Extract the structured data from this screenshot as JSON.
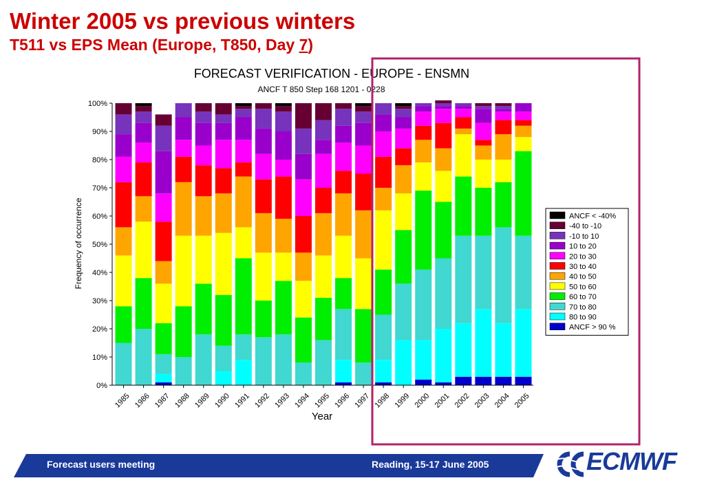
{
  "slide": {
    "title": "Winter 2005 vs previous winters",
    "subtitle_pre": "T511 vs EPS Mean (Europe, T850, Day ",
    "subtitle_day": "7",
    "subtitle_post": ")",
    "footer_left": "Forecast users meeting",
    "footer_right": "Reading, 15-17 June 2005",
    "logo_text": "ECMWF",
    "footer_color": "#1a3a9a",
    "highlight_color": "#b0226a"
  },
  "chart_data": {
    "type": "bar",
    "stacked": true,
    "title": "FORECAST VERIFICATION - EUROPE - ENSMN",
    "subtitle": "ANCF T 850 Step 168 1201 - 0228",
    "xlabel": "Year",
    "ylabel": "Frequency of occurrence",
    "ylim": [
      0,
      100
    ],
    "y_ticks": [
      "0%",
      "10%",
      "20%",
      "30%",
      "40%",
      "50%",
      "60%",
      "70%",
      "80%",
      "90%",
      "100%"
    ],
    "grid": false,
    "legend_position": "right",
    "highlighted_years": [
      "1998",
      "1999",
      "2000",
      "2001",
      "2002",
      "2003",
      "2004",
      "2005"
    ],
    "categories": [
      "1985",
      "1986",
      "1987",
      "1988",
      "1989",
      "1990",
      "1991",
      "1992",
      "1993",
      "1994",
      "1995",
      "1996",
      "1997",
      "1998",
      "1999",
      "2000",
      "2001",
      "2002",
      "2003",
      "2004",
      "2005"
    ],
    "series": [
      {
        "name": "ANCF > 90 %",
        "color": "#0000cc",
        "values": [
          0,
          0,
          1,
          0,
          0,
          0,
          0,
          0,
          0,
          0,
          0,
          1,
          0,
          1,
          0,
          2,
          1,
          3,
          3,
          3,
          3
        ]
      },
      {
        "name": "80 to 90",
        "color": "#00ffff",
        "values": [
          0,
          0,
          3,
          0,
          0,
          5,
          9,
          0,
          0,
          0,
          0,
          8,
          0,
          8,
          16,
          14,
          19,
          19,
          24,
          19,
          24
        ]
      },
      {
        "name": "70 to 80",
        "color": "#40d8d0",
        "values": [
          15,
          20,
          7,
          10,
          18,
          9,
          9,
          17,
          18,
          8,
          16,
          18,
          8,
          16,
          20,
          25,
          25,
          31,
          26,
          34,
          26
        ]
      },
      {
        "name": "60 to 70",
        "color": "#00ee00",
        "values": [
          13,
          18,
          11,
          18,
          18,
          18,
          27,
          13,
          19,
          16,
          15,
          11,
          19,
          16,
          19,
          28,
          20,
          21,
          17,
          16,
          30
        ]
      },
      {
        "name": "50 to 60",
        "color": "#ffff00",
        "values": [
          18,
          20,
          14,
          25,
          17,
          22,
          11,
          17,
          10,
          13,
          15,
          15,
          18,
          21,
          13,
          10,
          11,
          15,
          10,
          8,
          5
        ]
      },
      {
        "name": "40 to 50",
        "color": "#ffa500",
        "values": [
          10,
          9,
          8,
          19,
          14,
          14,
          18,
          14,
          12,
          10,
          15,
          15,
          17,
          8,
          10,
          8,
          8,
          2,
          5,
          9,
          4
        ]
      },
      {
        "name": "30 to 40",
        "color": "#ff0000",
        "values": [
          16,
          12,
          14,
          9,
          11,
          9,
          5,
          12,
          15,
          13,
          9,
          8,
          13,
          11,
          6,
          5,
          9,
          4,
          2,
          5,
          2
        ]
      },
      {
        "name": "20 to 30",
        "color": "#ff00ff",
        "values": [
          9,
          7,
          10,
          6,
          7,
          10,
          8,
          9,
          6,
          13,
          12,
          10,
          10,
          9,
          7,
          5,
          5,
          3,
          6,
          3,
          3
        ]
      },
      {
        "name": "10 to 20",
        "color": "#9900cc",
        "values": [
          8,
          7,
          15,
          8,
          8,
          6,
          8,
          9,
          10,
          9,
          5,
          6,
          8,
          6,
          4,
          2,
          1,
          1,
          5,
          1,
          3
        ]
      },
      {
        "name": "-10 to 10",
        "color": "#7733bb",
        "values": [
          7,
          4,
          9,
          5,
          4,
          3,
          3,
          7,
          7,
          9,
          7,
          6,
          4,
          4,
          3,
          1,
          1,
          1,
          1,
          1,
          0
        ]
      },
      {
        "name": "-40 to -10",
        "color": "#660033",
        "values": [
          4,
          2,
          4,
          0,
          3,
          4,
          1,
          2,
          2,
          9,
          6,
          2,
          2,
          0,
          1,
          0,
          1,
          0,
          1,
          1,
          0
        ]
      },
      {
        "name": "ANCF < -40%",
        "color": "#000000",
        "values": [
          0,
          1,
          0,
          0,
          0,
          0,
          1,
          0,
          1,
          0,
          0,
          0,
          1,
          0,
          1,
          0,
          0,
          0,
          0,
          0,
          0
        ]
      }
    ]
  }
}
